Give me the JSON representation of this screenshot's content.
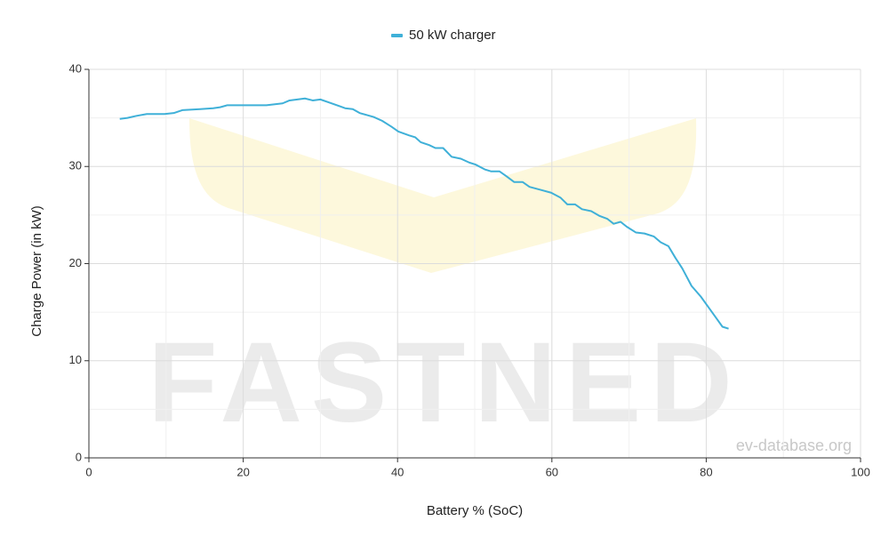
{
  "chart_data": {
    "type": "line",
    "x_label": "Battery % (SoC)",
    "y_label": "Charge Power (in kW)",
    "watermarks": [
      "FASTNED",
      "ev-database.org"
    ],
    "legend": "top",
    "xlim": [
      0,
      100
    ],
    "xticks": [
      0,
      20,
      40,
      60,
      80,
      100
    ],
    "xminorticks": [
      10,
      30,
      50,
      70,
      90
    ],
    "ylim": [
      0,
      40
    ],
    "yticks": [
      0,
      10,
      20,
      30,
      40
    ],
    "yminorticks": [
      5,
      15,
      25,
      35
    ],
    "grid": true,
    "series": [
      {
        "name": "50 kW charger",
        "color": "#3fb0d8",
        "x": [
          4.0,
          5.0,
          6.1,
          7.5,
          9.8,
          11.0,
          12.1,
          14.4,
          16.1,
          17.0,
          17.9,
          23.0,
          25.1,
          26.0,
          28.0,
          29.0,
          30.0,
          31.1,
          33.2,
          34.2,
          35.1,
          36.9,
          38.0,
          39.2,
          40.1,
          41.5,
          42.3,
          43.0,
          44.1,
          44.9,
          45.9,
          47.0,
          48.2,
          49.3,
          50.1,
          51.3,
          52.1,
          53.2,
          54.1,
          55.1,
          56.2,
          57.1,
          58.5,
          59.9,
          61.1,
          62.0,
          63.0,
          63.9,
          65.1,
          66.2,
          67.2,
          68.0,
          68.9,
          69.7,
          70.9,
          72.0,
          73.2,
          74.1,
          75.1,
          76.0,
          76.9,
          78.1,
          79.3,
          80.3,
          81.2,
          82.1,
          82.9
        ],
        "values": [
          34.9,
          35.0,
          35.2,
          35.4,
          35.4,
          35.5,
          35.8,
          35.9,
          36.0,
          36.1,
          36.3,
          36.3,
          36.5,
          36.8,
          37.0,
          36.8,
          36.9,
          36.6,
          36.0,
          35.9,
          35.5,
          35.1,
          34.7,
          34.1,
          33.6,
          33.2,
          33.0,
          32.5,
          32.2,
          31.9,
          31.9,
          31.0,
          30.8,
          30.4,
          30.2,
          29.7,
          29.5,
          29.5,
          29.0,
          28.4,
          28.4,
          27.9,
          27.6,
          27.3,
          26.8,
          26.1,
          26.1,
          25.6,
          25.4,
          24.9,
          24.6,
          24.1,
          24.3,
          23.8,
          23.2,
          23.1,
          22.8,
          22.2,
          21.8,
          20.6,
          19.5,
          17.7,
          16.6,
          15.5,
          14.5,
          13.5,
          13.3
        ]
      }
    ]
  }
}
